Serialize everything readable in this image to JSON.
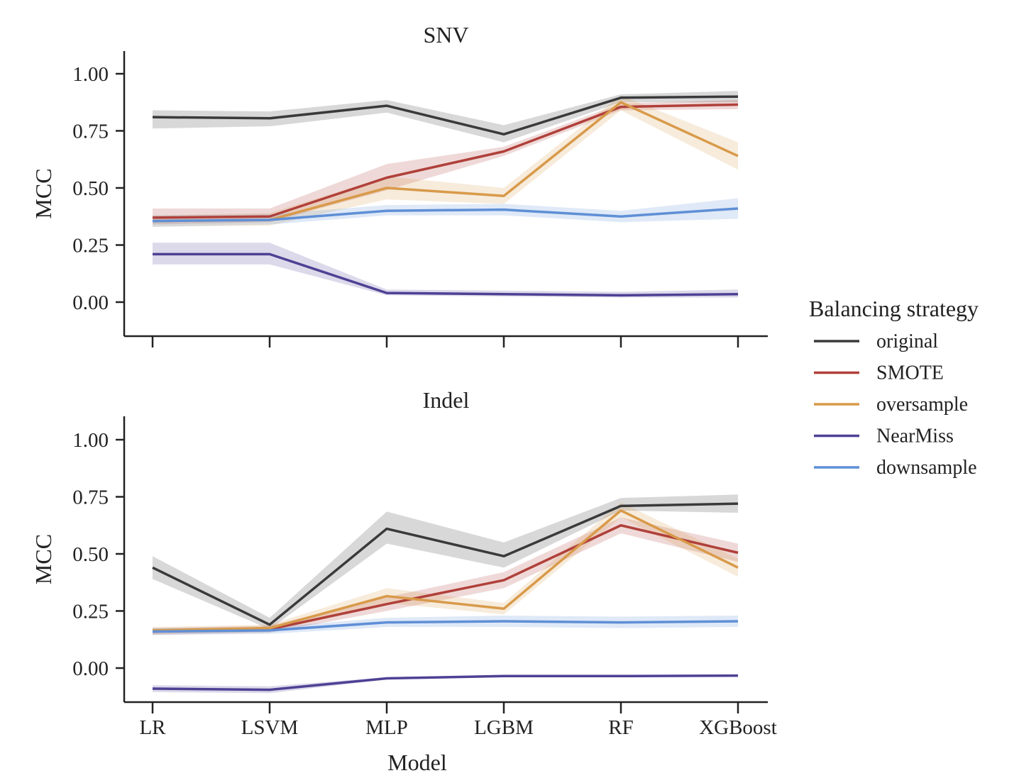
{
  "chart_data": [
    {
      "type": "line",
      "title": "SNV",
      "xlabel": "",
      "ylabel": "MCC",
      "categories": [
        "LR",
        "LSVM",
        "MLP",
        "LGBM",
        "RF",
        "XGBoost"
      ],
      "show_x_tick_labels": false,
      "ylim": [
        -0.15,
        1.1
      ],
      "yticks": [
        "1.00",
        "0.75",
        "0.50",
        "0.25",
        "0.00"
      ],
      "ytick_values": [
        1.0,
        0.75,
        0.5,
        0.25,
        0.0
      ],
      "grid": false,
      "series": [
        {
          "name": "original",
          "color": "#3a3a3c",
          "values": [
            0.81,
            0.805,
            0.86,
            0.735,
            0.895,
            0.9
          ],
          "lower": [
            0.76,
            0.77,
            0.83,
            0.7,
            0.875,
            0.875
          ],
          "upper": [
            0.84,
            0.835,
            0.885,
            0.775,
            0.91,
            0.925
          ]
        },
        {
          "name": "SMOTE",
          "color": "#b0403a",
          "values": [
            0.37,
            0.375,
            0.545,
            0.66,
            0.855,
            0.865
          ],
          "lower": [
            0.34,
            0.35,
            0.49,
            0.64,
            0.84,
            0.845
          ],
          "upper": [
            0.41,
            0.41,
            0.605,
            0.68,
            0.87,
            0.885
          ]
        },
        {
          "name": "oversample",
          "color": "#d89a4a",
          "values": [
            0.355,
            0.36,
            0.5,
            0.465,
            0.875,
            0.64
          ],
          "lower": [
            0.33,
            0.335,
            0.45,
            0.43,
            0.84,
            0.58
          ],
          "upper": [
            0.38,
            0.39,
            0.55,
            0.5,
            0.905,
            0.7
          ]
        },
        {
          "name": "NearMiss",
          "color": "#4e4194",
          "values": [
            0.21,
            0.21,
            0.04,
            0.035,
            0.03,
            0.035
          ],
          "lower": [
            0.165,
            0.165,
            0.03,
            0.025,
            0.02,
            0.02
          ],
          "upper": [
            0.26,
            0.26,
            0.055,
            0.05,
            0.045,
            0.055
          ]
        },
        {
          "name": "downsample",
          "color": "#5f8fd6",
          "values": [
            0.355,
            0.36,
            0.4,
            0.405,
            0.375,
            0.41
          ],
          "lower": [
            0.33,
            0.34,
            0.38,
            0.38,
            0.35,
            0.365
          ],
          "upper": [
            0.38,
            0.385,
            0.425,
            0.43,
            0.4,
            0.455
          ]
        }
      ]
    },
    {
      "type": "line",
      "title": "Indel",
      "xlabel": "Model",
      "ylabel": "MCC",
      "categories": [
        "LR",
        "LSVM",
        "MLP",
        "LGBM",
        "RF",
        "XGBoost"
      ],
      "show_x_tick_labels": true,
      "ylim": [
        -0.15,
        1.1
      ],
      "yticks": [
        "1.00",
        "0.75",
        "0.50",
        "0.25",
        "0.00"
      ],
      "ytick_values": [
        1.0,
        0.75,
        0.5,
        0.25,
        0.0
      ],
      "grid": false,
      "series": [
        {
          "name": "original",
          "color": "#3a3a3c",
          "values": [
            0.44,
            0.19,
            0.61,
            0.49,
            0.71,
            0.72
          ],
          "lower": [
            0.39,
            0.17,
            0.545,
            0.44,
            0.69,
            0.68
          ],
          "upper": [
            0.49,
            0.22,
            0.685,
            0.55,
            0.745,
            0.76
          ]
        },
        {
          "name": "SMOTE",
          "color": "#b0403a",
          "values": [
            0.16,
            0.17,
            0.28,
            0.385,
            0.625,
            0.505
          ],
          "lower": [
            0.145,
            0.155,
            0.25,
            0.35,
            0.59,
            0.465
          ],
          "upper": [
            0.175,
            0.185,
            0.31,
            0.42,
            0.66,
            0.545
          ]
        },
        {
          "name": "oversample",
          "color": "#d89a4a",
          "values": [
            0.165,
            0.175,
            0.315,
            0.26,
            0.69,
            0.44
          ],
          "lower": [
            0.15,
            0.16,
            0.285,
            0.235,
            0.66,
            0.4
          ],
          "upper": [
            0.18,
            0.19,
            0.35,
            0.285,
            0.725,
            0.48
          ]
        },
        {
          "name": "NearMiss",
          "color": "#4e4194",
          "values": [
            -0.09,
            -0.095,
            -0.045,
            -0.035,
            -0.035,
            -0.033
          ],
          "lower": [
            -0.105,
            -0.11,
            -0.05,
            -0.04,
            -0.04,
            -0.038
          ],
          "upper": [
            -0.075,
            -0.08,
            -0.04,
            -0.03,
            -0.03,
            -0.028
          ]
        },
        {
          "name": "downsample",
          "color": "#5f8fd6",
          "values": [
            0.16,
            0.165,
            0.2,
            0.205,
            0.2,
            0.205
          ],
          "lower": [
            0.145,
            0.15,
            0.18,
            0.18,
            0.175,
            0.18
          ],
          "upper": [
            0.175,
            0.18,
            0.22,
            0.23,
            0.225,
            0.23
          ]
        }
      ]
    }
  ],
  "legend": {
    "title": "Balancing strategy",
    "placement": "right",
    "entries": [
      {
        "label": "original",
        "color": "#3a3a3c"
      },
      {
        "label": "SMOTE",
        "color": "#b0403a"
      },
      {
        "label": "oversample",
        "color": "#d89a4a"
      },
      {
        "label": "NearMiss",
        "color": "#4e4194"
      },
      {
        "label": "downsample",
        "color": "#5f8fd6"
      }
    ]
  }
}
